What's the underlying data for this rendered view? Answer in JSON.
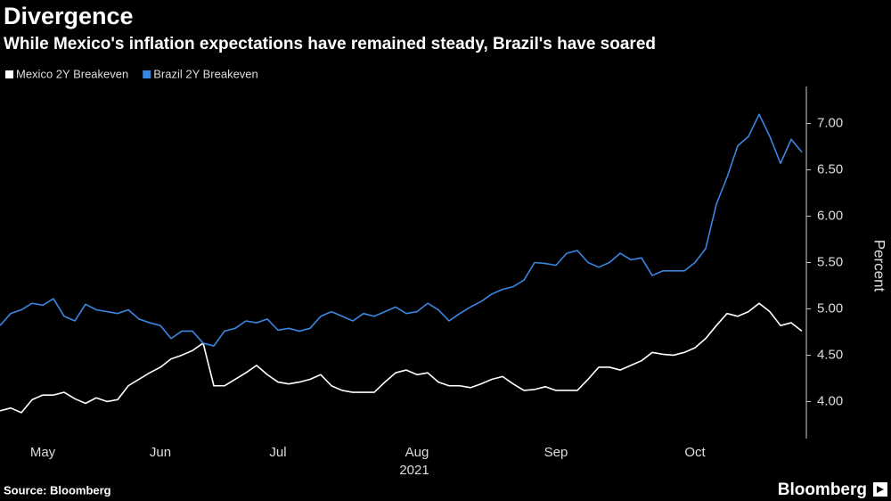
{
  "chart_data": {
    "type": "line",
    "title": "Divergence",
    "subtitle": "While Mexico's inflation expectations have remained steady, Brazil's have soared",
    "ylabel": "Percent",
    "xlabel": "2021",
    "source": "Source: Bloomberg",
    "brand": "Bloomberg",
    "categories": [
      null,
      null,
      null,
      null,
      "May",
      null,
      null,
      null,
      null,
      null,
      null,
      null,
      null,
      null,
      null,
      "Jun",
      null,
      null,
      null,
      null,
      null,
      null,
      null,
      null,
      null,
      null,
      "Jul",
      null,
      null,
      null,
      null,
      null,
      null,
      null,
      null,
      null,
      null,
      null,
      null,
      "Aug",
      null,
      null,
      null,
      null,
      null,
      null,
      null,
      null,
      null,
      null,
      null,
      null,
      "Sep",
      null,
      null,
      null,
      null,
      null,
      null,
      null,
      null,
      null,
      null,
      null,
      null,
      "Oct",
      null,
      null,
      null,
      null,
      null,
      null,
      null,
      null,
      null,
      null
    ],
    "series": [
      {
        "name": "Mexico 2Y Breakeven",
        "color": "#ffffff",
        "values": [
          3.9,
          3.93,
          3.88,
          4.02,
          4.07,
          4.07,
          4.1,
          4.03,
          3.98,
          4.04,
          4.0,
          4.02,
          4.17,
          4.24,
          4.31,
          4.37,
          4.46,
          4.5,
          4.55,
          4.63,
          4.17,
          4.17,
          4.24,
          4.31,
          4.39,
          4.29,
          4.21,
          4.19,
          4.21,
          4.24,
          4.29,
          4.17,
          4.12,
          4.1,
          4.1,
          4.1,
          4.21,
          4.31,
          4.34,
          4.29,
          4.31,
          4.21,
          4.17,
          4.17,
          4.15,
          4.19,
          4.24,
          4.27,
          4.19,
          4.12,
          4.13,
          4.16,
          4.12,
          4.12,
          4.12,
          4.24,
          4.37,
          4.37,
          4.34,
          4.39,
          4.44,
          4.53,
          4.51,
          4.5,
          4.53,
          4.58,
          4.68,
          4.82,
          4.95,
          4.92,
          4.97,
          5.06,
          4.97,
          4.82,
          4.85,
          4.76
        ]
      },
      {
        "name": "Brazil 2Y Breakeven",
        "color": "#3a86e0",
        "values": [
          4.82,
          4.95,
          4.99,
          5.06,
          5.04,
          5.11,
          4.92,
          4.87,
          5.05,
          4.99,
          4.97,
          4.95,
          4.99,
          4.89,
          4.85,
          4.82,
          4.68,
          4.76,
          4.76,
          4.63,
          4.6,
          4.76,
          4.79,
          4.87,
          4.85,
          4.89,
          4.77,
          4.79,
          4.76,
          4.79,
          4.92,
          4.97,
          4.92,
          4.87,
          4.95,
          4.92,
          4.97,
          5.02,
          4.95,
          4.97,
          5.06,
          4.99,
          4.87,
          4.95,
          5.02,
          5.08,
          5.16,
          5.21,
          5.24,
          5.31,
          5.5,
          5.49,
          5.47,
          5.6,
          5.63,
          5.5,
          5.45,
          5.5,
          5.6,
          5.53,
          5.55,
          5.36,
          5.41,
          5.41,
          5.41,
          5.5,
          5.65,
          6.13,
          6.42,
          6.76,
          6.86,
          7.1,
          6.86,
          6.57,
          6.83,
          6.69
        ]
      }
    ],
    "ylim": [
      3.6,
      7.4
    ],
    "yticks": [
      {
        "value": 4,
        "label": "4.00"
      },
      {
        "value": 4.5,
        "label": "4.50"
      },
      {
        "value": 5,
        "label": "5.00"
      },
      {
        "value": 5.5,
        "label": "5.50"
      },
      {
        "value": 6,
        "label": "6.00"
      },
      {
        "value": 6.5,
        "label": "6.50"
      },
      {
        "value": 7,
        "label": "7.00"
      }
    ],
    "grid": false
  }
}
